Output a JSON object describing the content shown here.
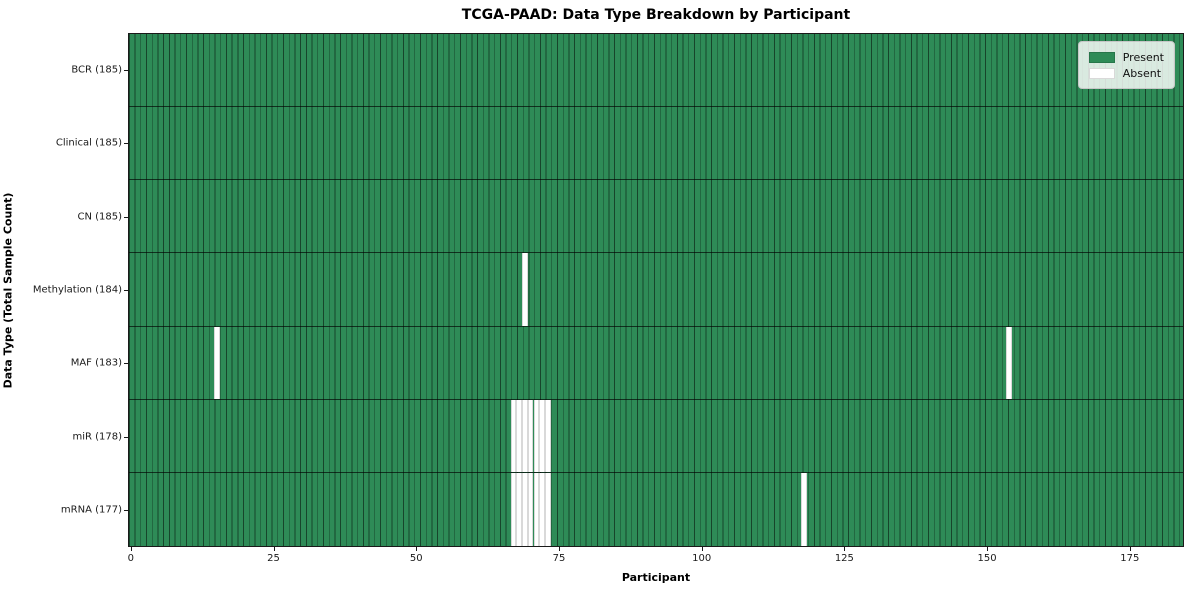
{
  "chart_data": {
    "type": "heatmap",
    "title": "TCGA-PAAD: Data Type Breakdown by Participant",
    "xlabel": "Participant",
    "ylabel": "Data Type (Total Sample Count)",
    "n_participants": 185,
    "x_ticks": [
      0,
      25,
      50,
      75,
      100,
      125,
      150,
      175
    ],
    "rows": [
      {
        "label": "BCR (185)",
        "data_type": "BCR",
        "total_samples": 185,
        "absent_participants": []
      },
      {
        "label": "Clinical (185)",
        "data_type": "Clinical",
        "total_samples": 185,
        "absent_participants": []
      },
      {
        "label": "CN (185)",
        "data_type": "CN",
        "total_samples": 185,
        "absent_participants": []
      },
      {
        "label": "Methylation (184)",
        "data_type": "Methylation",
        "total_samples": 184,
        "absent_participants": [
          69
        ]
      },
      {
        "label": "MAF (183)",
        "data_type": "MAF",
        "total_samples": 183,
        "absent_participants": [
          15,
          154
        ]
      },
      {
        "label": "miR (178)",
        "data_type": "miR",
        "total_samples": 178,
        "absent_participants": [
          67,
          68,
          69,
          70,
          71,
          72,
          73
        ]
      },
      {
        "label": "mRNA (177)",
        "data_type": "mRNA",
        "total_samples": 177,
        "absent_participants": [
          67,
          68,
          69,
          70,
          71,
          72,
          73,
          118
        ]
      }
    ],
    "legend": [
      {
        "label": "Present",
        "color": "#2e8b57"
      },
      {
        "label": "Absent",
        "color": "#ffffff"
      }
    ],
    "colors": {
      "present": "#2e8b57",
      "absent": "#ffffff",
      "cell_edge_on_present": "rgba(0,0,0,0.5)",
      "cell_edge_on_absent": "#d9d9d9",
      "row_separator": "rgba(0,0,0,0.65)",
      "spine": "#1a1a1a"
    },
    "legend_position": "upper right",
    "grid": "per-participant vertical cell edges"
  }
}
